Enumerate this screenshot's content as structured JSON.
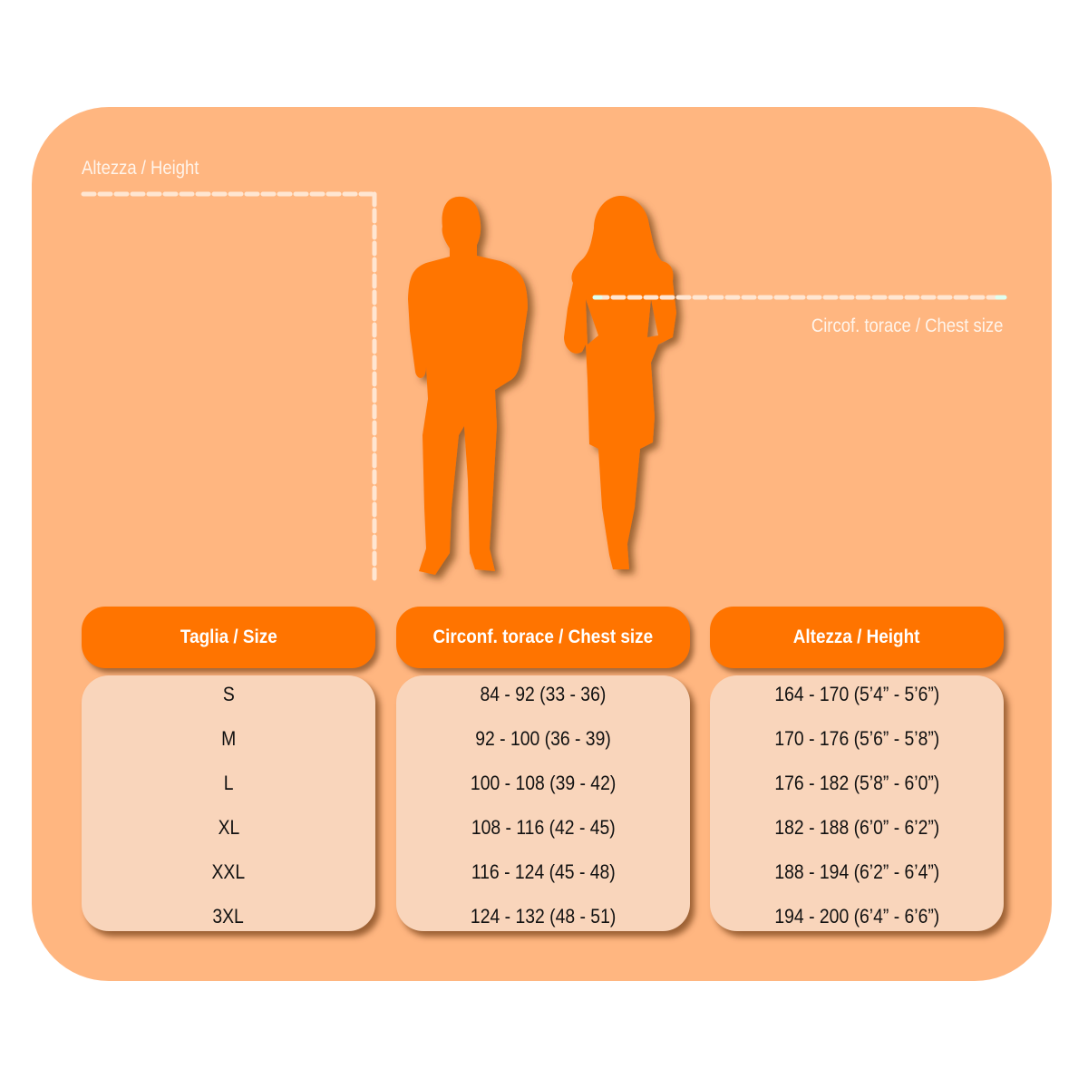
{
  "labels": {
    "height_label": "Altezza / Height",
    "chest_label": "Circof. torace / Chest size"
  },
  "colors": {
    "background_panel": "#FFB680",
    "accent": "#FF7400",
    "table_body": "#F9D5BB",
    "guide_lines": "#FFE6D2"
  },
  "icons": [
    "man-silhouette-icon",
    "woman-silhouette-icon"
  ],
  "table": {
    "headers": [
      "Taglia / Size",
      "Circonf. torace / Chest size",
      "Altezza / Height"
    ],
    "sizes": [
      "S",
      "M",
      "L",
      "XL",
      "XXL",
      "3XL"
    ],
    "chest": [
      "84 - 92 (33 - 36)",
      "92 - 100 (36 - 39)",
      "100 - 108 (39 - 42)",
      "108 - 116 (42 - 45)",
      "116 - 124 (45 - 48)",
      "124 - 132 (48 - 51)"
    ],
    "height": [
      "164 - 170 (5’4” - 5’6”)",
      "170 - 176 (5’6” - 5’8”)",
      "176 - 182 (5’8” - 6’0”)",
      "182 - 188 (6’0” - 6’2”)",
      "188 - 194 (6’2” - 6’4”)",
      "194 - 200 (6’4” - 6’6”)"
    ]
  }
}
